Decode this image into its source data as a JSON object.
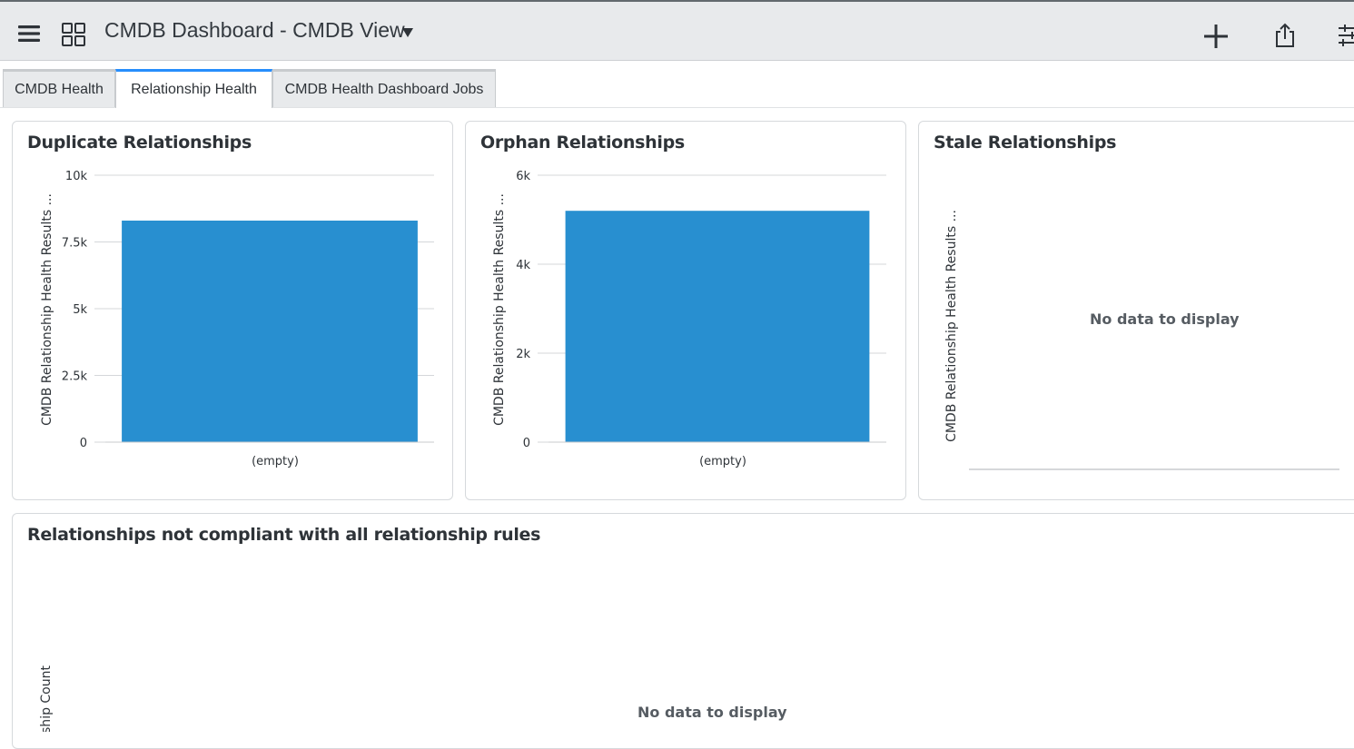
{
  "header": {
    "title": "CMDB Dashboard - CMDB View",
    "icons": [
      "menu-icon",
      "grid-icon",
      "caret-down-icon",
      "plus-icon",
      "share-icon",
      "filter-icon"
    ]
  },
  "tabs": [
    {
      "label": "CMDB Health",
      "active": false
    },
    {
      "label": "Relationship Health",
      "active": true
    },
    {
      "label": "CMDB Health Dashboard Jobs",
      "active": false
    }
  ],
  "widgets": {
    "duplicate": {
      "title": "Duplicate Relationships",
      "ylabel": "CMDB Relationship Health Results ...",
      "category": "(empty)"
    },
    "orphan": {
      "title": "Orphan Relationships",
      "ylabel": "CMDB Relationship Health Results ...",
      "category": "(empty)"
    },
    "stale": {
      "title": "Stale Relationships",
      "ylabel": "CMDB Relationship Health Results ...",
      "no_data": "No data to display"
    },
    "noncompliant": {
      "title": "Relationships not compliant with all relationship rules",
      "ylabel": "Relationship Count",
      "no_data": "No data to display"
    }
  },
  "colors": {
    "bar": "#288fd0",
    "accent_tab": "#278efc"
  },
  "chart_data": [
    {
      "type": "bar",
      "title": "Duplicate Relationships",
      "categories": [
        "(empty)"
      ],
      "values": [
        8300
      ],
      "ylabel": "CMDB Relationship Health Results ...",
      "ylim": [
        0,
        10000
      ],
      "yticks": [
        0,
        2500,
        5000,
        7500,
        10000
      ],
      "ytick_labels": [
        "0",
        "2.5k",
        "5k",
        "7.5k",
        "10k"
      ],
      "grid": true
    },
    {
      "type": "bar",
      "title": "Orphan Relationships",
      "categories": [
        "(empty)"
      ],
      "values": [
        5200
      ],
      "ylabel": "CMDB Relationship Health Results ...",
      "ylim": [
        0,
        6000
      ],
      "yticks": [
        0,
        2000,
        4000,
        6000
      ],
      "ytick_labels": [
        "0",
        "2k",
        "4k",
        "6k"
      ],
      "grid": true
    }
  ]
}
